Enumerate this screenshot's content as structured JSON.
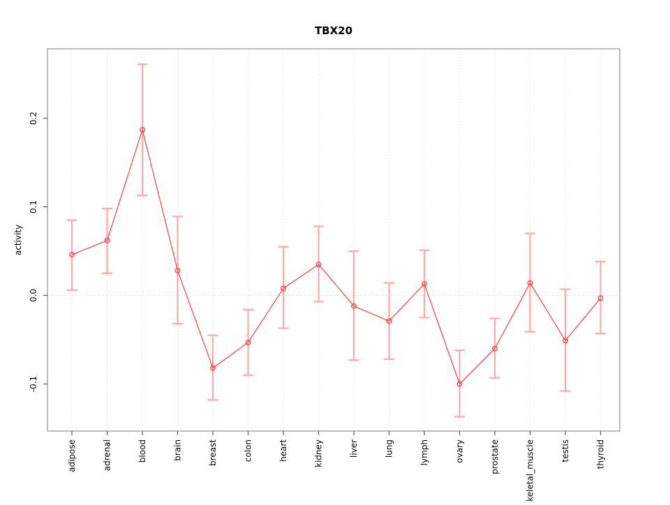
{
  "chart_data": {
    "type": "line",
    "title": "TBX20",
    "xlabel": "",
    "ylabel": "activity",
    "categories": [
      "adipose",
      "adrenal",
      "blood",
      "brain",
      "breast",
      "colon",
      "heart",
      "kidney",
      "liver",
      "lung",
      "lymph",
      "ovary",
      "prostate",
      "skeletal_muscle",
      "testis",
      "thyroid"
    ],
    "series": [
      {
        "name": "activity",
        "values": [
          0.046,
          0.062,
          0.187,
          0.028,
          -0.082,
          -0.053,
          0.008,
          0.035,
          -0.012,
          -0.029,
          0.013,
          -0.1,
          -0.06,
          0.014,
          -0.051,
          -0.003
        ],
        "lower": [
          0.006,
          0.025,
          0.113,
          -0.032,
          -0.118,
          -0.09,
          -0.037,
          -0.007,
          -0.073,
          -0.072,
          -0.025,
          -0.137,
          -0.093,
          -0.041,
          -0.108,
          -0.043
        ],
        "upper": [
          0.085,
          0.098,
          0.261,
          0.089,
          -0.045,
          -0.016,
          0.055,
          0.078,
          0.05,
          0.014,
          0.051,
          -0.062,
          -0.026,
          0.07,
          0.007,
          0.038
        ]
      }
    ],
    "yticks": [
      -0.1,
      0.0,
      0.1,
      0.2
    ],
    "ylim": [
      -0.152,
      0.278
    ],
    "grid": {
      "vertical_dotted_per_category": true,
      "horizontal_dotted_at_zero": true
    },
    "legend_position": "none",
    "colors": {
      "line": "#ff4040",
      "point": "#ff4040",
      "errorbar": "#ffa8a8",
      "box": "#999999",
      "tick": "#555555",
      "grid": "#dcdcdc",
      "zero_line": "#cccccc",
      "text": "#000000",
      "background": "#ffffff"
    }
  }
}
